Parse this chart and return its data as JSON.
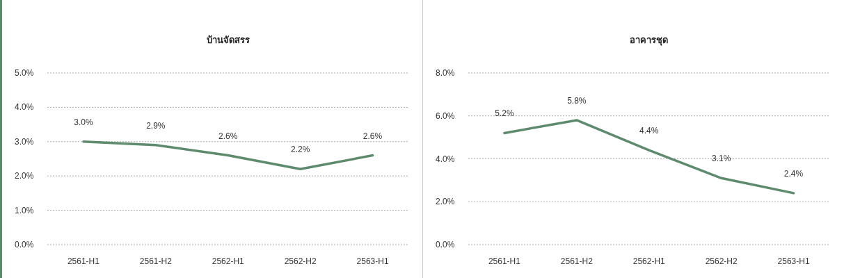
{
  "chart_data": [
    {
      "type": "line",
      "title": "บ้านจัดสรร",
      "categories": [
        "2561-H1",
        "2561-H2",
        "2562-H1",
        "2562-H2",
        "2563-H1"
      ],
      "series": [
        {
          "color": "#5e8a6e",
          "values": [
            3.0,
            2.9,
            2.6,
            2.2,
            2.6
          ],
          "value_labels": [
            "3.0%",
            "2.9%",
            "2.6%",
            "2.2%",
            "2.6%"
          ]
        }
      ],
      "ylim": [
        0,
        5
      ],
      "yticks": [
        {
          "value": 0,
          "label": "0.0%"
        },
        {
          "value": 1,
          "label": "1.0%"
        },
        {
          "value": 2,
          "label": "2.0%"
        },
        {
          "value": 3,
          "label": "3.0%"
        },
        {
          "value": 4,
          "label": "4.0%"
        },
        {
          "value": 5,
          "label": "5.0%"
        }
      ],
      "grid": "y",
      "marker": "none",
      "line_style": "solid"
    },
    {
      "type": "line",
      "title": "อาคารชุด",
      "categories": [
        "2561-H1",
        "2561-H2",
        "2562-H1",
        "2562-H2",
        "2563-H1"
      ],
      "series": [
        {
          "color": "#5e8a6e",
          "values": [
            5.2,
            5.8,
            4.4,
            3.1,
            2.4
          ],
          "value_labels": [
            "5.2%",
            "5.8%",
            "4.4%",
            "3.1%",
            "2.4%"
          ]
        }
      ],
      "ylim": [
        0,
        8
      ],
      "yticks": [
        {
          "value": 0,
          "label": "0.0%"
        },
        {
          "value": 2,
          "label": "2.0%"
        },
        {
          "value": 4,
          "label": "4.0%"
        },
        {
          "value": 6,
          "label": "6.0%"
        },
        {
          "value": 8,
          "label": "8.0%"
        }
      ],
      "grid": "y",
      "marker": "none",
      "line_style": "solid"
    }
  ]
}
